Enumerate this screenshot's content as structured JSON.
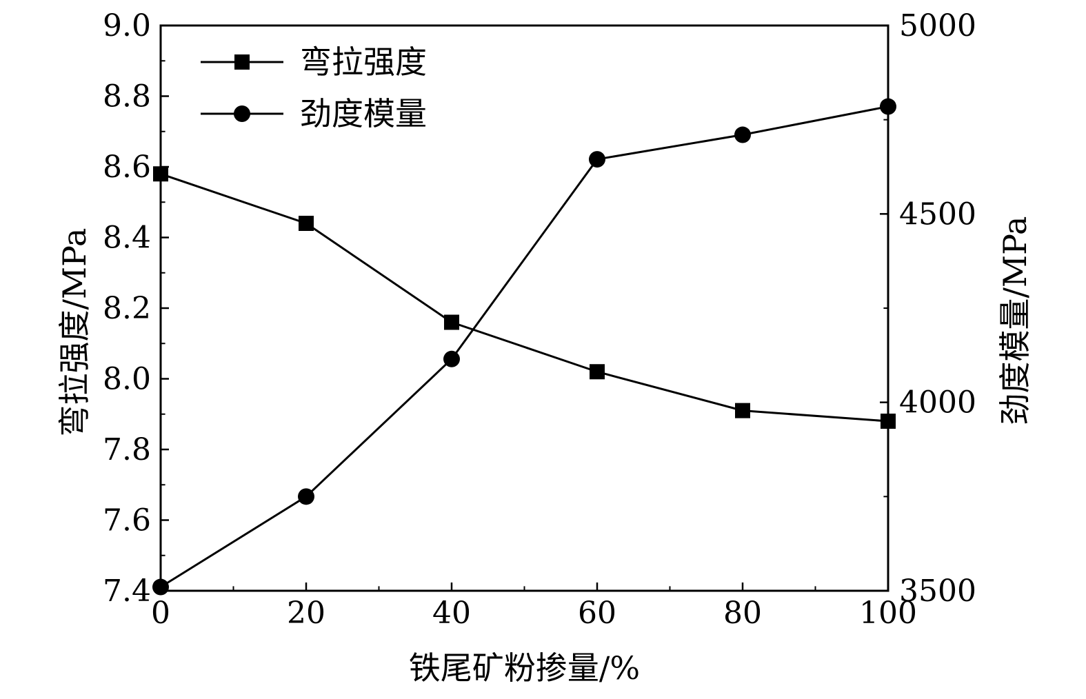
{
  "chart_data": {
    "type": "line",
    "title": "",
    "xlabel": "铁尾矿粉掺量/%",
    "ylabel_left": "弯拉强度/MPa",
    "ylabel_right": "劲度模量/MPa",
    "x": [
      0,
      20,
      40,
      60,
      80,
      100
    ],
    "xlim": [
      0,
      100
    ],
    "xticks": [
      "0",
      "20",
      "40",
      "60",
      "80",
      "100"
    ],
    "ylim_left": [
      7.4,
      9.0
    ],
    "yticks_left": [
      "7.4",
      "7.6",
      "7.8",
      "8.0",
      "8.2",
      "8.4",
      "8.6",
      "8.8",
      "9.0"
    ],
    "ylim_right": [
      3500,
      5000
    ],
    "yticks_right": [
      "3500",
      "4000",
      "4500",
      "5000"
    ],
    "grid": false,
    "legend_position": "top-left",
    "series": [
      {
        "name": "弯拉强度",
        "axis": "left",
        "marker": "square",
        "values": [
          8.58,
          8.44,
          8.16,
          8.02,
          7.91,
          7.88
        ]
      },
      {
        "name": "劲度模量",
        "axis": "right",
        "marker": "circle",
        "values": [
          3510,
          3750,
          4115,
          4645,
          4710,
          4785
        ]
      }
    ]
  }
}
